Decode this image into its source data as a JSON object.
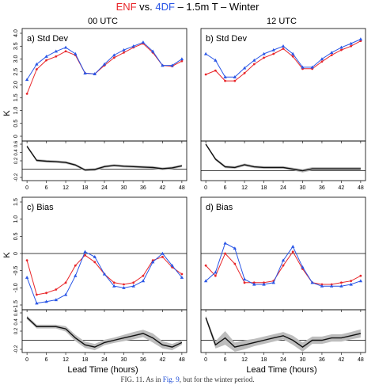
{
  "figure": {
    "title_parts": [
      {
        "text": "ENF",
        "color": "#e8262a"
      },
      {
        "text": " vs. ",
        "color": "#000000"
      },
      {
        "text": "4DF",
        "color": "#2a56e6"
      },
      {
        "text": " – 1.5m T – Winter",
        "color": "#000000"
      }
    ],
    "column_titles": [
      "00 UTC",
      "12 UTC"
    ],
    "row_ylabels": [
      "K",
      "K"
    ],
    "xlabel": "Lead Time (hours)",
    "caption": {
      "pre": "FIG. 11. As in ",
      "link": "Fig. 9",
      "post": ", but for the winter period."
    }
  },
  "colors": {
    "enf": "#e8262a",
    "fdf": "#2a56e6",
    "diff": "#111111",
    "band": "#bdbdbd"
  },
  "chart_data": [
    {
      "type": "line",
      "panel": "a) Std Dev",
      "x": [
        0,
        3,
        6,
        9,
        12,
        15,
        18,
        21,
        24,
        27,
        30,
        33,
        36,
        39,
        42,
        45,
        48
      ],
      "ylim": [
        0,
        4
      ],
      "yticks": [
        "0",
        "0.5",
        "1.0",
        "1.5",
        "2.0",
        "2.5",
        "3.0",
        "3.5",
        "4.0"
      ],
      "series": [
        {
          "key": "enf",
          "values": [
            1.65,
            2.6,
            2.95,
            3.1,
            3.3,
            3.15,
            2.45,
            2.42,
            2.75,
            3.05,
            3.25,
            3.45,
            3.6,
            3.25,
            2.75,
            2.72,
            2.92
          ]
        },
        {
          "key": "fdf",
          "values": [
            2.2,
            2.8,
            3.1,
            3.3,
            3.45,
            3.2,
            2.45,
            2.42,
            2.8,
            3.15,
            3.35,
            3.5,
            3.65,
            3.3,
            2.75,
            2.75,
            3.0
          ]
        }
      ]
    },
    {
      "type": "line",
      "panel": "b) Std Dev",
      "x": [
        0,
        3,
        6,
        9,
        12,
        15,
        18,
        21,
        24,
        27,
        30,
        33,
        36,
        39,
        42,
        45,
        48
      ],
      "ylim": [
        0,
        4
      ],
      "yticks": [
        "0",
        "0.5",
        "1.0",
        "1.5",
        "2.0",
        "2.5",
        "3.0",
        "3.5",
        "4.0"
      ],
      "series": [
        {
          "key": "enf",
          "values": [
            2.4,
            2.55,
            2.15,
            2.15,
            2.45,
            2.8,
            3.05,
            3.2,
            3.4,
            3.1,
            2.62,
            2.62,
            2.9,
            3.15,
            3.35,
            3.5,
            3.7
          ]
        },
        {
          "key": "fdf",
          "values": [
            3.2,
            2.95,
            2.3,
            2.3,
            2.65,
            2.95,
            3.2,
            3.35,
            3.5,
            3.2,
            2.68,
            2.68,
            3.0,
            3.25,
            3.45,
            3.6,
            3.77
          ]
        }
      ]
    },
    {
      "type": "line",
      "panel": "",
      "x": [
        0,
        3,
        6,
        9,
        12,
        15,
        18,
        21,
        24,
        27,
        30,
        33,
        36,
        39,
        42,
        45,
        48
      ],
      "ylim": [
        -0.2,
        0.6
      ],
      "yticks": [
        "-0.2",
        "0.2",
        "0.4",
        "0.6"
      ],
      "series": [
        {
          "key": "diff",
          "values": [
            0.55,
            0.21,
            0.19,
            0.18,
            0.16,
            0.1,
            -0.02,
            -0.01,
            0.06,
            0.09,
            0.07,
            0.06,
            0.05,
            0.04,
            0.01,
            0.03,
            0.08
          ],
          "lower": [
            0.52,
            0.18,
            0.16,
            0.15,
            0.13,
            0.07,
            -0.05,
            -0.04,
            0.03,
            0.06,
            0.04,
            0.03,
            0.02,
            0.01,
            -0.02,
            0.0,
            0.05
          ],
          "upper": [
            0.58,
            0.24,
            0.22,
            0.21,
            0.19,
            0.13,
            0.01,
            0.02,
            0.09,
            0.12,
            0.1,
            0.09,
            0.08,
            0.07,
            0.04,
            0.06,
            0.11
          ]
        }
      ]
    },
    {
      "type": "line",
      "panel": "",
      "x": [
        0,
        3,
        6,
        9,
        12,
        15,
        18,
        21,
        24,
        27,
        30,
        33,
        36,
        39,
        42,
        45,
        48
      ],
      "ylim": [
        -0.2,
        0.8
      ],
      "yticks": [
        "-0.2",
        "0.2",
        "0.4",
        "0.6",
        "0.8"
      ],
      "series": [
        {
          "key": "diff",
          "values": [
            0.8,
            0.35,
            0.12,
            0.1,
            0.18,
            0.12,
            0.1,
            0.1,
            0.1,
            0.05,
            0.0,
            0.06,
            0.06,
            0.06,
            0.06,
            0.06,
            0.06
          ],
          "lower": [
            0.77,
            0.31,
            0.08,
            0.06,
            0.14,
            0.08,
            0.06,
            0.06,
            0.06,
            0.01,
            -0.05,
            0.01,
            0.01,
            0.01,
            0.01,
            0.01,
            0.01
          ],
          "upper": [
            0.83,
            0.39,
            0.16,
            0.14,
            0.22,
            0.16,
            0.14,
            0.14,
            0.14,
            0.09,
            0.05,
            0.11,
            0.11,
            0.11,
            0.11,
            0.11,
            0.11
          ]
        }
      ]
    },
    {
      "type": "line",
      "panel": "c) Bias",
      "x": [
        0,
        3,
        6,
        9,
        12,
        15,
        18,
        21,
        24,
        27,
        30,
        33,
        36,
        39,
        42,
        45,
        48
      ],
      "ylim": [
        -1.5,
        1.5
      ],
      "yticks": [
        "-1.5",
        "-1.0",
        "-0.5",
        "0",
        "0.5",
        "1.0",
        "1.5"
      ],
      "series": [
        {
          "key": "enf",
          "values": [
            -0.2,
            -1.2,
            -1.15,
            -1.05,
            -0.85,
            -0.35,
            -0.05,
            -0.25,
            -0.6,
            -0.85,
            -0.9,
            -0.85,
            -0.65,
            -0.2,
            -0.1,
            -0.4,
            -0.6
          ]
        },
        {
          "key": "fdf",
          "values": [
            -0.7,
            -1.45,
            -1.4,
            -1.35,
            -1.2,
            -0.65,
            0.05,
            -0.1,
            -0.6,
            -0.95,
            -1.0,
            -0.95,
            -0.8,
            -0.25,
            0.0,
            -0.35,
            -0.7
          ]
        }
      ]
    },
    {
      "type": "line",
      "panel": "d) Bias",
      "x": [
        0,
        3,
        6,
        9,
        12,
        15,
        18,
        21,
        24,
        27,
        30,
        33,
        36,
        39,
        42,
        45,
        48
      ],
      "ylim": [
        -1.5,
        1.5
      ],
      "yticks": [
        "-1.5",
        "-1.0",
        "-0.5",
        "0",
        "0.5",
        "1.0",
        "1.5"
      ],
      "series": [
        {
          "key": "enf",
          "values": [
            -0.35,
            -0.65,
            0.0,
            -0.3,
            -0.85,
            -0.85,
            -0.85,
            -0.8,
            -0.35,
            0.05,
            -0.45,
            -0.85,
            -0.9,
            -0.9,
            -0.85,
            -0.8,
            -0.65
          ]
        },
        {
          "key": "fdf",
          "values": [
            -0.8,
            -0.55,
            0.3,
            0.15,
            -0.75,
            -0.9,
            -0.9,
            -0.85,
            -0.2,
            0.2,
            -0.4,
            -0.85,
            -0.95,
            -0.95,
            -0.95,
            -0.9,
            -0.8
          ]
        }
      ]
    },
    {
      "type": "line",
      "panel": "",
      "x": [
        0,
        3,
        6,
        9,
        12,
        15,
        18,
        21,
        24,
        27,
        30,
        33,
        36,
        39,
        42,
        45,
        48
      ],
      "ylim": [
        -0.2,
        0.6
      ],
      "yticks": [
        "-0.2",
        "0.2",
        "0.4",
        "0.6"
      ],
      "series": [
        {
          "key": "diff",
          "values": [
            0.5,
            0.3,
            0.3,
            0.3,
            0.25,
            0.05,
            -0.1,
            -0.15,
            -0.05,
            0.0,
            0.05,
            0.1,
            0.15,
            0.05,
            -0.1,
            -0.15,
            -0.05
          ],
          "lower": [
            0.46,
            0.26,
            0.26,
            0.26,
            0.19,
            -0.02,
            -0.17,
            -0.22,
            -0.11,
            -0.06,
            -0.02,
            0.02,
            0.07,
            -0.05,
            -0.18,
            -0.22,
            -0.1
          ],
          "upper": [
            0.54,
            0.34,
            0.34,
            0.34,
            0.31,
            0.12,
            -0.03,
            -0.08,
            0.01,
            0.06,
            0.12,
            0.18,
            0.23,
            0.15,
            -0.02,
            -0.08,
            0.0
          ]
        }
      ]
    },
    {
      "type": "line",
      "panel": "",
      "x": [
        0,
        3,
        6,
        9,
        12,
        15,
        18,
        21,
        24,
        27,
        30,
        33,
        36,
        39,
        42,
        45,
        48
      ],
      "ylim": [
        -0.2,
        0.6
      ],
      "yticks": [
        "-0.2",
        "0.2",
        "0.4",
        "0.6"
      ],
      "series": [
        {
          "key": "diff",
          "values": [
            0.5,
            -0.1,
            0.05,
            -0.15,
            -0.1,
            -0.05,
            0.0,
            0.05,
            0.1,
            0.0,
            -0.15,
            0.0,
            0.0,
            0.05,
            0.05,
            0.1,
            0.15
          ],
          "lower": [
            0.46,
            -0.18,
            -0.1,
            -0.25,
            -0.2,
            -0.13,
            -0.08,
            -0.03,
            0.02,
            -0.1,
            -0.25,
            -0.08,
            -0.08,
            -0.03,
            -0.03,
            0.02,
            0.06
          ],
          "upper": [
            0.54,
            -0.02,
            0.2,
            -0.05,
            0.0,
            0.03,
            0.08,
            0.13,
            0.18,
            0.1,
            -0.05,
            0.08,
            0.08,
            0.13,
            0.13,
            0.18,
            0.24
          ]
        }
      ]
    }
  ],
  "x_ticks": [
    "0",
    "6",
    "12",
    "18",
    "24",
    "30",
    "36",
    "42",
    "48"
  ]
}
